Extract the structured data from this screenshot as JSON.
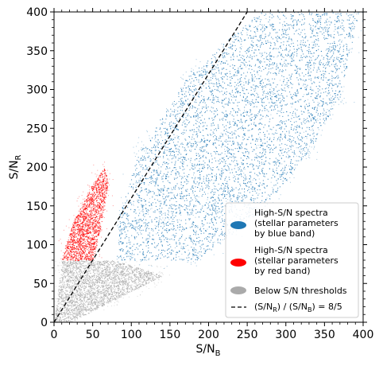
{
  "chart_data": {
    "type": "scatter",
    "xlabel": "S/N",
    "xlabel_sub": "B",
    "ylabel": "S/N",
    "ylabel_sub": "R",
    "xlim": [
      0,
      400
    ],
    "ylim": [
      0,
      400
    ],
    "xticks": [
      0,
      50,
      100,
      150,
      200,
      250,
      300,
      350,
      400
    ],
    "yticks": [
      0,
      50,
      100,
      150,
      200,
      250,
      300,
      350,
      400
    ],
    "grid": false,
    "legend_position": "lower-right",
    "thresholds": {
      "blue_min_snb": 80,
      "red_min_snr": 80
    },
    "series": [
      {
        "name": "High-S/N spectra (stellar parameters by blue band)",
        "legend_lines": [
          "High-S/N spectra",
          "(stellar parameters",
          "by blue band)"
        ],
        "color": "#1f77b4",
        "region_polygon_data_units": [
          [
            80,
            80
          ],
          [
            185,
            80
          ],
          [
            265,
            140
          ],
          [
            330,
            220
          ],
          [
            370,
            290
          ],
          [
            395,
            400
          ],
          [
            265,
            400
          ],
          [
            175,
            320
          ],
          [
            110,
            220
          ],
          [
            85,
            140
          ]
        ]
      },
      {
        "name": "High-S/N spectra (stellar parameters by red band)",
        "legend_lines": [
          "High-S/N spectra",
          "(stellar parameters",
          "by red band)"
        ],
        "color": "#ff0000",
        "region_polygon_data_units": [
          [
            10,
            80
          ],
          [
            50,
            80
          ],
          [
            60,
            120
          ],
          [
            70,
            180
          ],
          [
            65,
            200
          ],
          [
            45,
            170
          ],
          [
            25,
            130
          ],
          [
            15,
            100
          ]
        ]
      },
      {
        "name": "Below S/N thresholds",
        "legend_lines": [
          "Below S/N thresholds"
        ],
        "color": "#aaaaaa",
        "region_polygon_data_units": [
          [
            0,
            0
          ],
          [
            20,
            0
          ],
          [
            80,
            30
          ],
          [
            140,
            60
          ],
          [
            80,
            80
          ],
          [
            10,
            80
          ],
          [
            5,
            40
          ]
        ]
      }
    ],
    "reference_line": {
      "legend_label": "(S/N_R) / (S/N_B) = 8/5",
      "legend_parts": [
        "(S/N",
        "R",
        ") / (S/N",
        "B",
        ") = 8/5"
      ],
      "slope": 1.6,
      "x": [
        0,
        250
      ],
      "y": [
        0,
        400
      ],
      "style": "dashed",
      "color": "#000000"
    }
  }
}
